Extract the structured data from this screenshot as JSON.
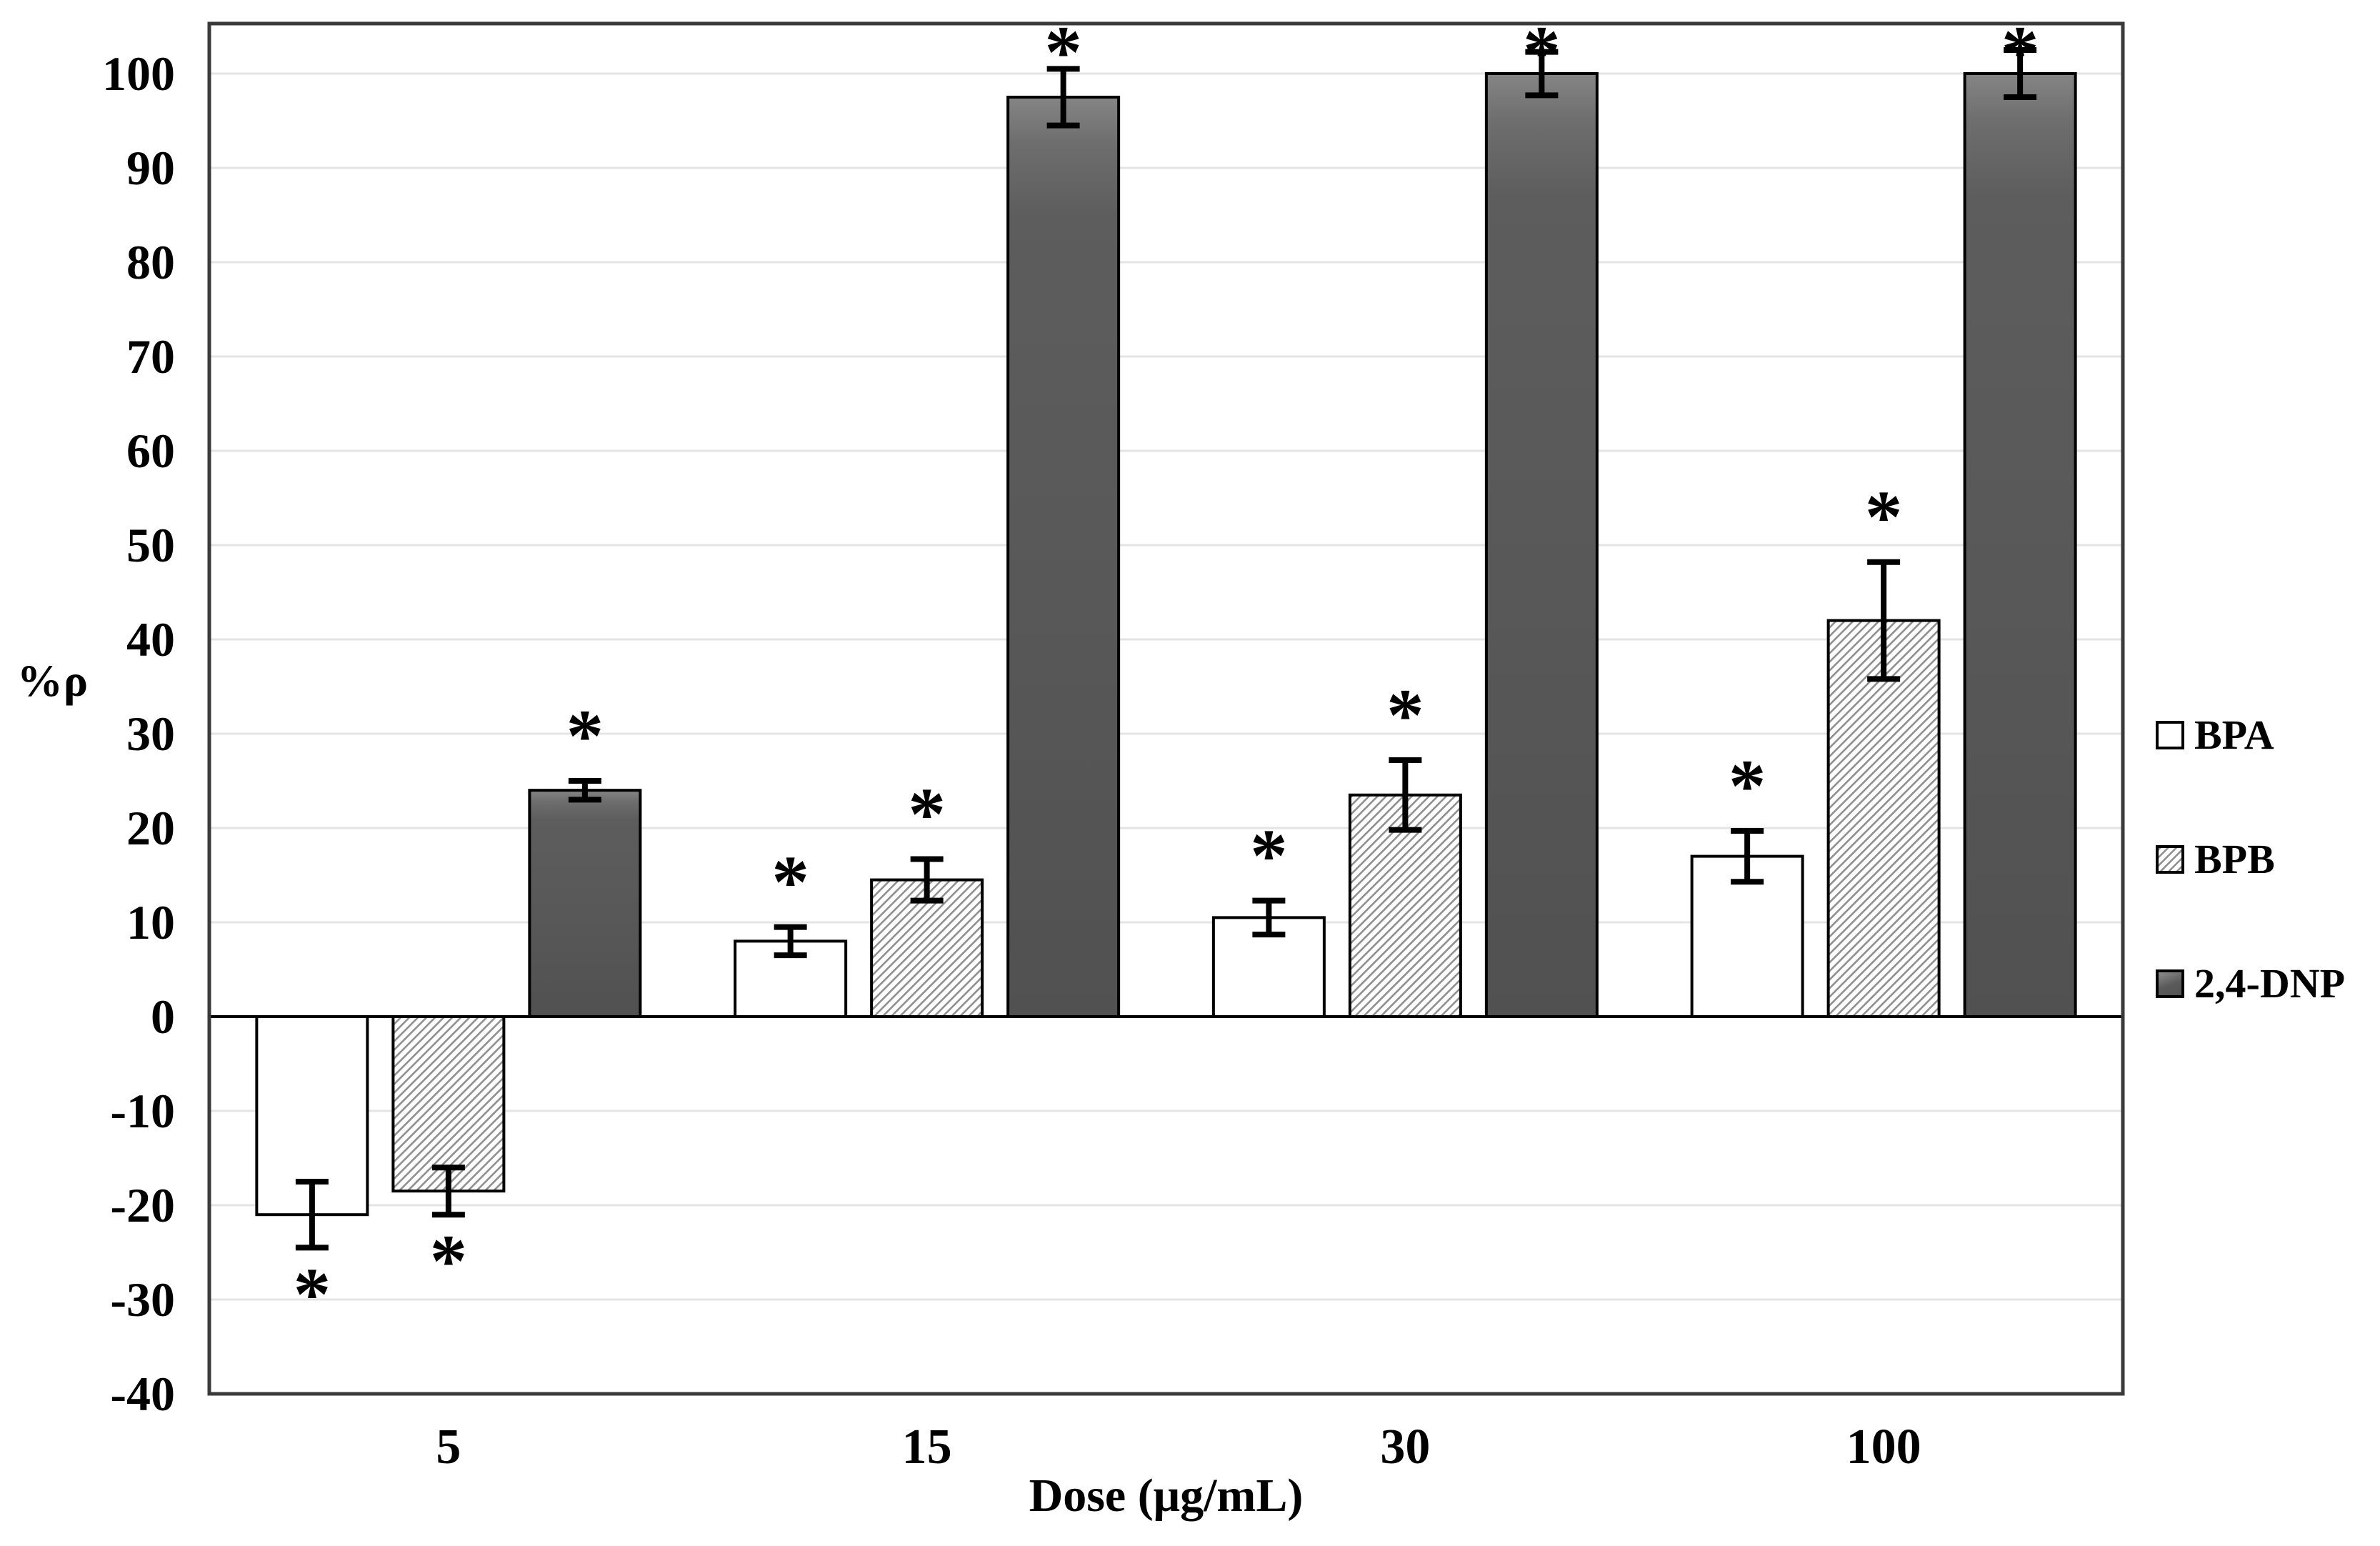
{
  "chart_data": {
    "type": "bar",
    "title": "",
    "xlabel": "Dose (μg/mL)",
    "ylabel": "%ρ",
    "categories": [
      "5",
      "15",
      "30",
      "100"
    ],
    "series": [
      {
        "name": "BPA",
        "style": "white",
        "values": [
          -21,
          8,
          10.5,
          17
        ],
        "errors": [
          3.5,
          1.5,
          1.8,
          2.7
        ],
        "significant": [
          true,
          true,
          true,
          true
        ]
      },
      {
        "name": "BPB",
        "style": "hatched",
        "values": [
          -18.5,
          14.5,
          23.5,
          42
        ],
        "errors": [
          2.5,
          2.2,
          3.7,
          6.2
        ],
        "significant": [
          true,
          true,
          true,
          true
        ]
      },
      {
        "name": "2,4-DNP",
        "style": "dark",
        "values": [
          24,
          97.5,
          100,
          100
        ],
        "errors": [
          1,
          3,
          2.3,
          2.5
        ],
        "significant": [
          true,
          true,
          true,
          true
        ]
      }
    ],
    "ylim": [
      -40,
      105.3
    ],
    "yticks": [
      -40,
      -30,
      -20,
      -10,
      0,
      10,
      20,
      30,
      40,
      50,
      60,
      70,
      80,
      90,
      100
    ],
    "grid": true,
    "legend_position": "right",
    "significance_marker": "*",
    "colors": {
      "bpa_fill": "#ffffff",
      "bpb_hatch_line": "#8f8f8f",
      "dnp_fill": "#595959",
      "bar_border": "#000000",
      "grid": "#e4e4e4",
      "plot_border": "#3a3a3a",
      "zero_line": "#000000",
      "error_bar": "#000000",
      "text": "#000000"
    }
  }
}
